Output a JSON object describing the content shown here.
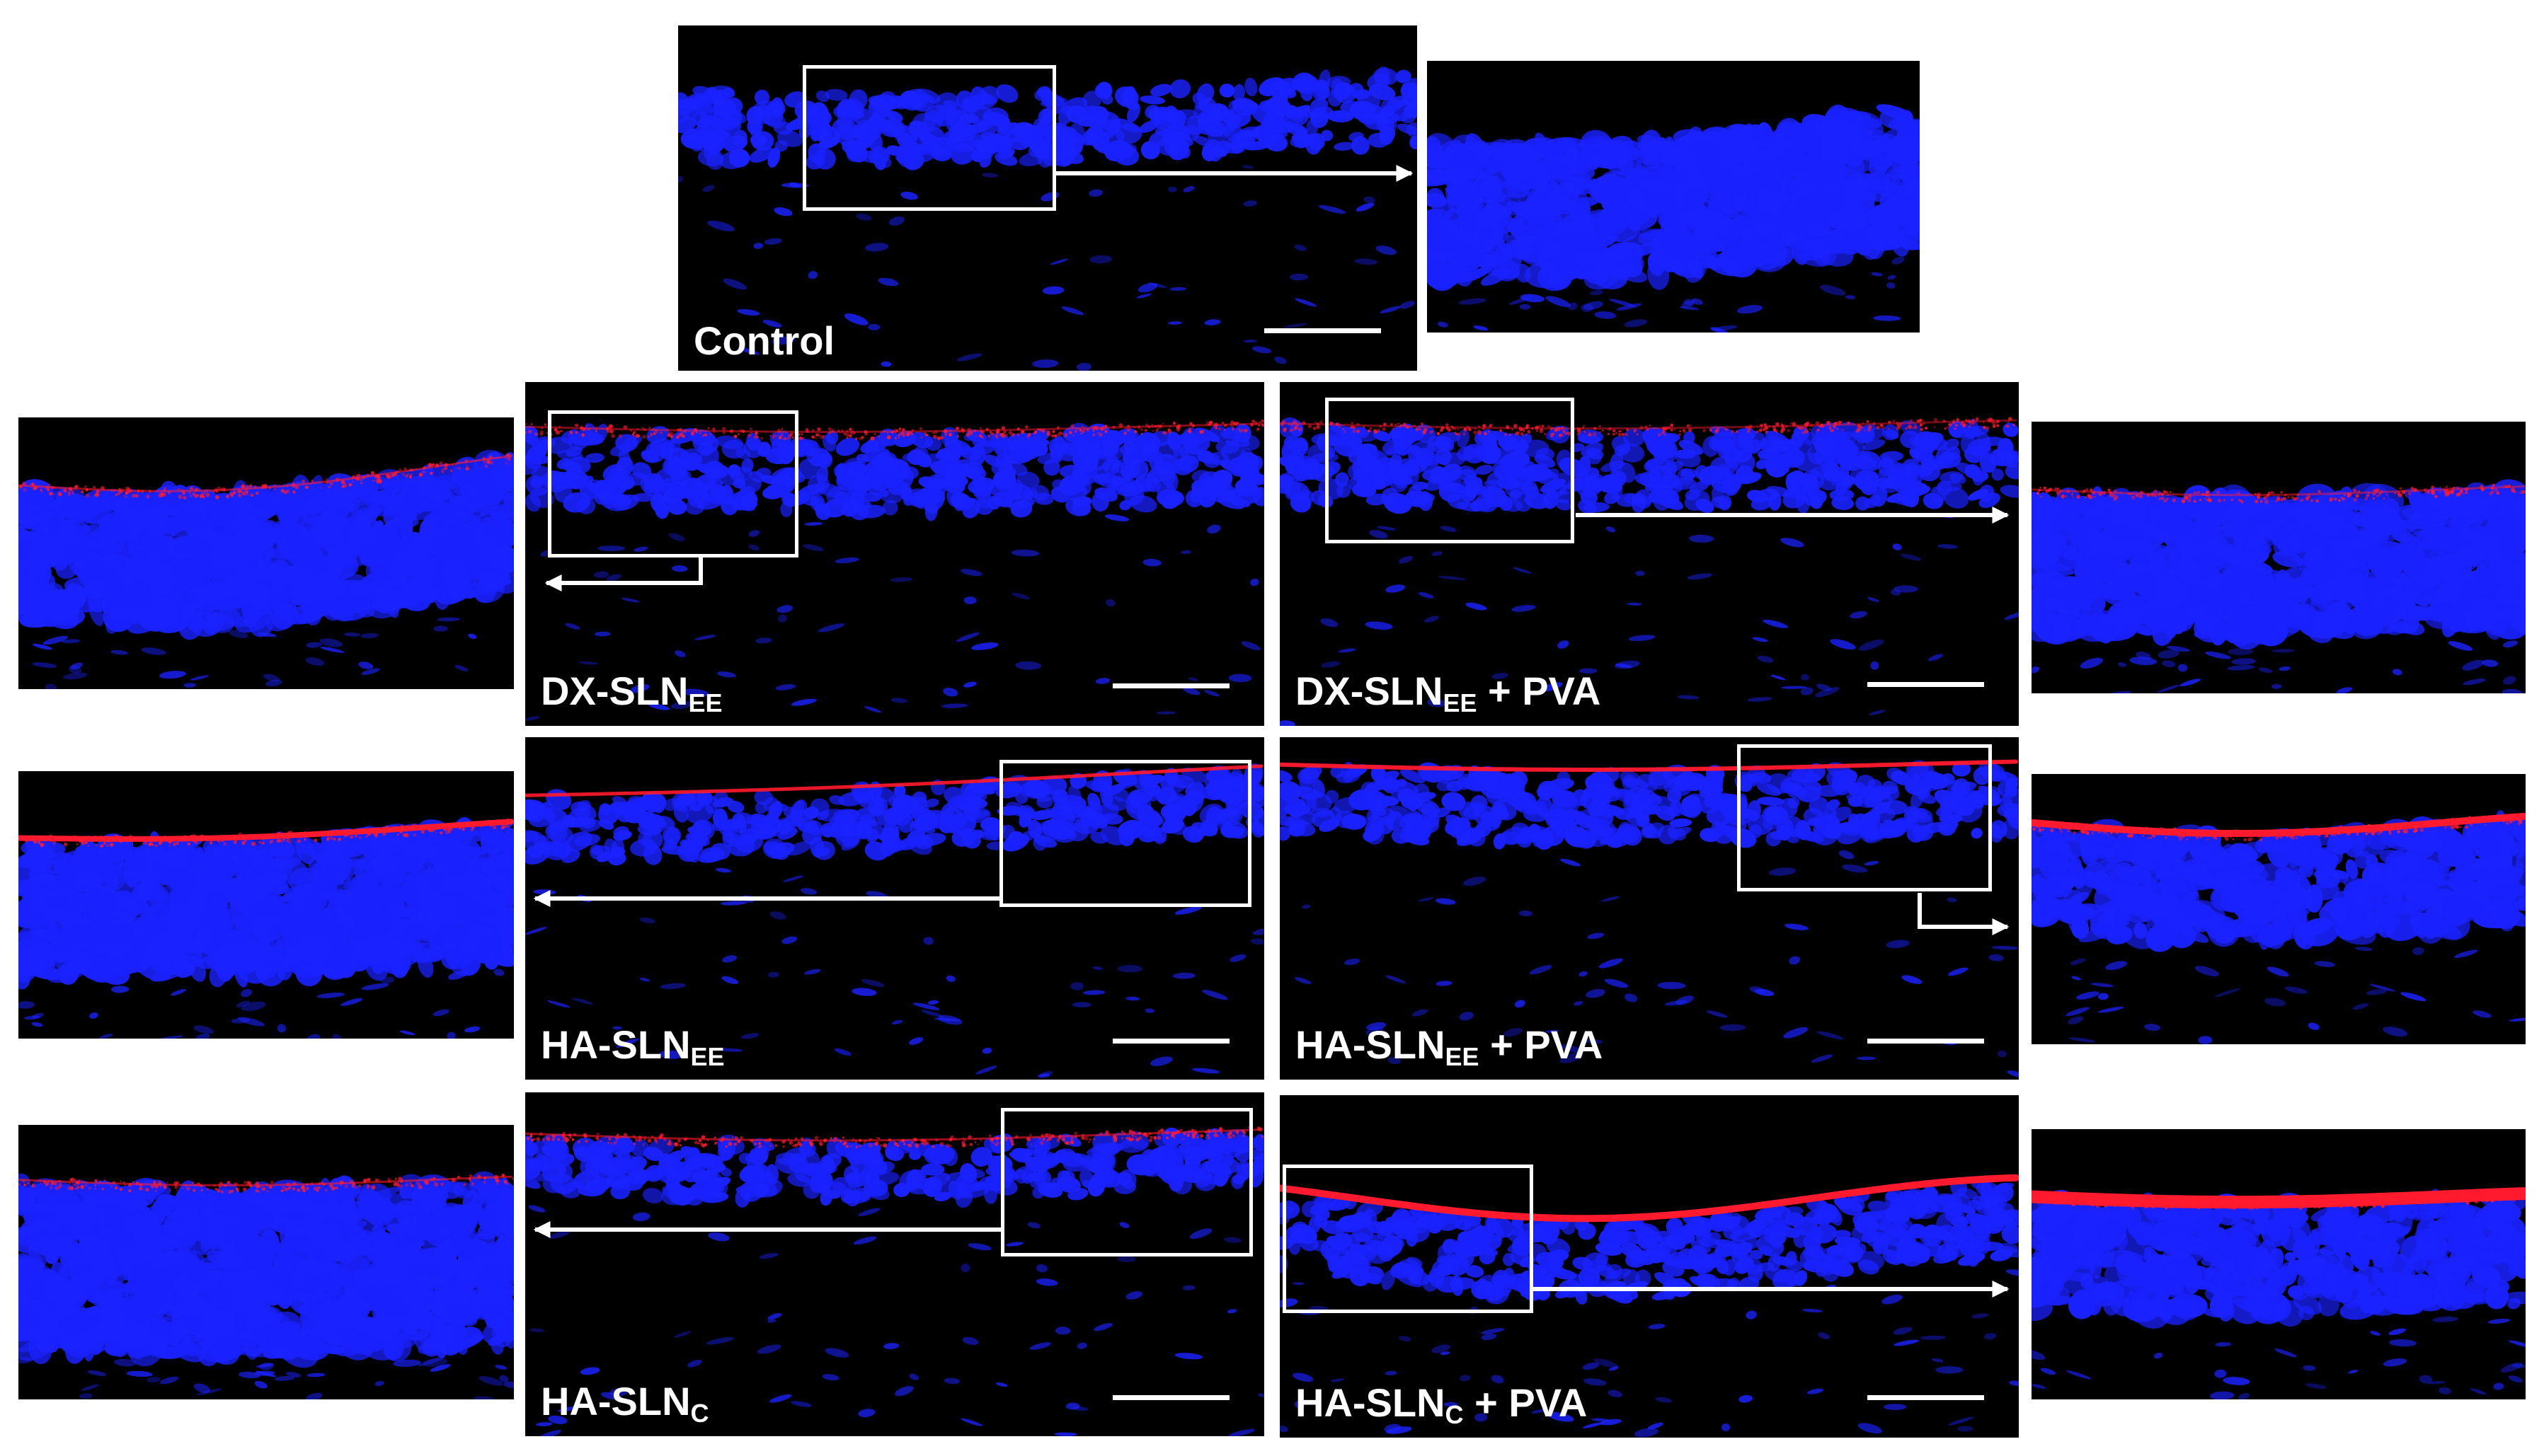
{
  "panels": {
    "control": {
      "label": "Control"
    },
    "dx_sln_ee": {
      "label": "DX-SLN",
      "sub": "EE",
      "suffix": ""
    },
    "dx_sln_ee_pva": {
      "label": "DX-SLN",
      "sub": "EE",
      "suffix": " + PVA"
    },
    "ha_sln_ee": {
      "label": "HA-SLN",
      "sub": "EE",
      "suffix": ""
    },
    "ha_sln_ee_pva": {
      "label": "HA-SLN",
      "sub": "EE",
      "suffix": " + PVA"
    },
    "ha_sln_c": {
      "label": "HA-SLN",
      "sub": "C",
      "suffix": ""
    },
    "ha_sln_c_pva": {
      "label": "HA-SLN",
      "sub": "C",
      "suffix": " + PVA"
    }
  },
  "colors": {
    "nuclei": "#1a22ff",
    "surface_signal": "#ff1a2e",
    "background": "#000000",
    "annotation": "#ffffff"
  }
}
